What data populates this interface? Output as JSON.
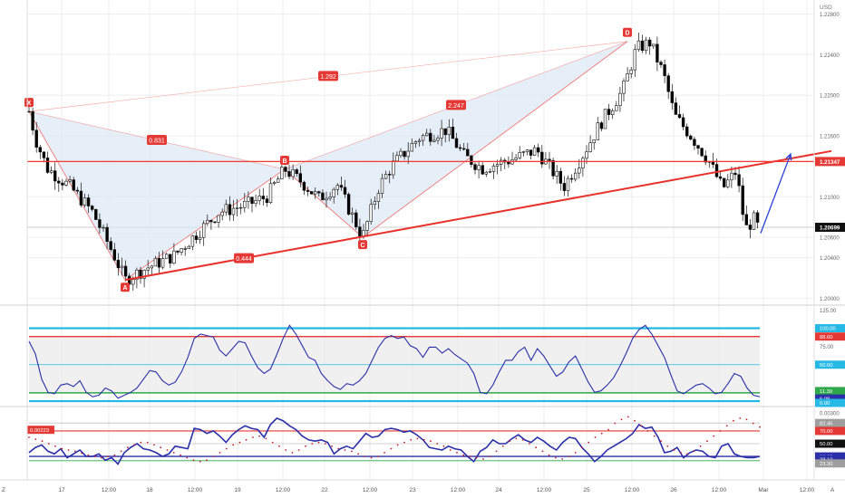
{
  "currency": "USD",
  "colors": {
    "bg": "#ffffff",
    "grid": "#eeeeee",
    "bull": "#ffffff",
    "bear": "#000000",
    "pattern_fill": "#dbe7f5",
    "pattern_line": "#f07a7a",
    "support": "#e8312a",
    "resistance": "#f03a30",
    "arrow": "#2a3fd8",
    "osc_line": "#2b2fa8",
    "band_cyan": "#27b9e6",
    "band_red": "#e53935",
    "band_green": "#2ea84a",
    "dots": "#c0202a"
  },
  "chart_data": [
    {
      "type": "candlestick",
      "symbol_unit": "USD",
      "x_ticks": [
        "Z",
        "17",
        "12:00",
        "18",
        "12:00",
        "19",
        "12:00",
        "22",
        "12:00",
        "23",
        "12:00",
        "24",
        "12:00",
        "25",
        "12:00",
        "26",
        "12:00",
        "Mar",
        "12:00",
        "A"
      ],
      "y_ticks": [
        "1.22400",
        "1.22000",
        "1.21600",
        "1.21000",
        "1.20600",
        "1.20400",
        "1.20000"
      ],
      "y_ticks_hidden": [
        "1.22800",
        "1.22000",
        "1.21600",
        "1.21000",
        "1.20600",
        "1.20400",
        "1.20000"
      ],
      "ylim": [
        1.1995,
        1.2292
      ],
      "price_labels": [
        {
          "label": "1.21347",
          "value": 1.21347,
          "color": "#e53935"
        },
        {
          "label": "1.20699",
          "value": 1.20699,
          "color": "#111111"
        }
      ],
      "harmonic_pattern": {
        "points": [
          {
            "label": "X",
            "t": 0,
            "price": 1.2184
          },
          {
            "label": "A",
            "t": 106,
            "price": 1.2018
          },
          {
            "label": "B",
            "t": 282,
            "price": 1.2127
          },
          {
            "label": "C",
            "t": 368,
            "price": 1.206
          },
          {
            "label": "D",
            "t": 660,
            "price": 1.2253
          }
        ],
        "ratios": [
          {
            "label": "0.831",
            "anchor": "XB"
          },
          {
            "label": "0.444",
            "anchor": "AC"
          },
          {
            "label": "1.292",
            "anchor": "XD"
          },
          {
            "label": "2.247",
            "anchor": "BD"
          }
        ]
      },
      "support_trendline": {
        "from": {
          "t": 106,
          "price": 1.2018
        },
        "to": {
          "t": 885,
          "price": 1.2145
        }
      },
      "resistance_level": 1.21347,
      "projection_arrow": {
        "from": {
          "t": 807,
          "price": 1.2064
        },
        "to": {
          "t": 840,
          "price": 1.2142
        }
      }
    },
    {
      "type": "line",
      "name": "oscillator",
      "y_ticks": [
        "125.00",
        "75.00"
      ],
      "ylim": [
        -5,
        128
      ],
      "levels": [
        {
          "label": "100.00",
          "value": 100,
          "color": "#27b9e6",
          "width": 2.2
        },
        {
          "label": "88.60",
          "value": 88.6,
          "color": "#e53935",
          "width": 1.4
        },
        {
          "label": "50.00",
          "value": 50,
          "color": "#27b9e6",
          "width": 0.8
        },
        {
          "label": "11.30",
          "value": 11.3,
          "color": "#2ea84a",
          "width": 1.4
        },
        {
          "label": "6.08",
          "value": 6.08,
          "color": "#2b2fa8",
          "width": 0
        },
        {
          "label": "0.00",
          "value": 0,
          "color": "#27b9e6",
          "width": 2.2
        }
      ],
      "values": [
        82,
        65,
        30,
        12,
        10,
        22,
        24,
        20,
        28,
        12,
        6,
        8,
        18,
        14,
        4,
        8,
        12,
        18,
        30,
        42,
        40,
        28,
        22,
        26,
        40,
        60,
        86,
        92,
        90,
        88,
        70,
        62,
        72,
        82,
        80,
        62,
        46,
        38,
        44,
        64,
        86,
        104,
        92,
        76,
        60,
        56,
        38,
        28,
        20,
        16,
        24,
        22,
        28,
        38,
        56,
        74,
        86,
        90,
        86,
        88,
        76,
        72,
        60,
        74,
        74,
        66,
        72,
        64,
        58,
        52,
        38,
        12,
        10,
        22,
        40,
        56,
        56,
        68,
        74,
        56,
        72,
        62,
        48,
        34,
        40,
        54,
        62,
        44,
        26,
        12,
        14,
        22,
        32,
        48,
        66,
        86,
        98,
        104,
        92,
        76,
        60,
        36,
        14,
        10,
        16,
        22,
        24,
        18,
        10,
        12,
        24,
        38,
        34,
        18,
        8,
        6
      ]
    },
    {
      "type": "line",
      "name": "momentum",
      "y_ticks": [
        "0.00300",
        "0.00100"
      ],
      "ylim": [
        -4,
        104
      ],
      "current_label": {
        "label": "0.00223",
        "value": 71.8,
        "color": "#e53935"
      },
      "levels": [
        {
          "label": "82.45",
          "value": 82.45,
          "color": "#9e9e9e",
          "width": 0.8
        },
        {
          "label": "70.00",
          "value": 70,
          "color": "#e53935",
          "width": 1.2
        },
        {
          "label": "50.00",
          "value": 50,
          "color": "#9e9e9e",
          "width": 0.8
        },
        {
          "label": "30.00",
          "value": 30,
          "color": "#2b2fa8",
          "width": 1.4
        },
        {
          "label": "28.10",
          "value": 28.1,
          "color": "#2b2fa8",
          "width": 0
        },
        {
          "label": "23.30",
          "value": 23.3,
          "color": "#2ea84a",
          "width": 0
        }
      ],
      "values": [
        36,
        44,
        48,
        38,
        34,
        42,
        28,
        34,
        40,
        30,
        30,
        34,
        24,
        28,
        18,
        36,
        44,
        50,
        42,
        40,
        36,
        30,
        34,
        46,
        44,
        42,
        74,
        72,
        66,
        70,
        62,
        52,
        64,
        72,
        78,
        74,
        72,
        60,
        80,
        90,
        86,
        78,
        72,
        62,
        56,
        54,
        56,
        52,
        34,
        42,
        46,
        42,
        54,
        66,
        60,
        62,
        72,
        74,
        72,
        68,
        70,
        64,
        56,
        44,
        42,
        40,
        46,
        42,
        40,
        30,
        22,
        38,
        44,
        56,
        50,
        50,
        58,
        64,
        56,
        52,
        60,
        54,
        46,
        40,
        52,
        60,
        58,
        44,
        34,
        22,
        30,
        40,
        46,
        52,
        58,
        66,
        80,
        74,
        76,
        60,
        36,
        38,
        44,
        28,
        36,
        40,
        38,
        30,
        28,
        46,
        50,
        34,
        30,
        28,
        28,
        30
      ],
      "dots": [
        60,
        57,
        54,
        50,
        46,
        42,
        40,
        38,
        35,
        32,
        30,
        28,
        30,
        32,
        38,
        44,
        48,
        52,
        52,
        48,
        44,
        40,
        36,
        32,
        28,
        24,
        22,
        24,
        30,
        36,
        42,
        48,
        52,
        56,
        60,
        62,
        58,
        52,
        46,
        40,
        36,
        40,
        46,
        50,
        52,
        50,
        46,
        42,
        40,
        38,
        34,
        30,
        28,
        30,
        36,
        42,
        48,
        52,
        56,
        58,
        56,
        54,
        50,
        46,
        40,
        36,
        32,
        30,
        28,
        26,
        30,
        38,
        46,
        54,
        58,
        56,
        50,
        44,
        38,
        32,
        28,
        26,
        30,
        36,
        44,
        52,
        60,
        66,
        72,
        82,
        88,
        92,
        86,
        78,
        70,
        62,
        54,
        46,
        40,
        36,
        34,
        38,
        46,
        54,
        62,
        70,
        78,
        86,
        90,
        88,
        82,
        76
      ]
    }
  ]
}
